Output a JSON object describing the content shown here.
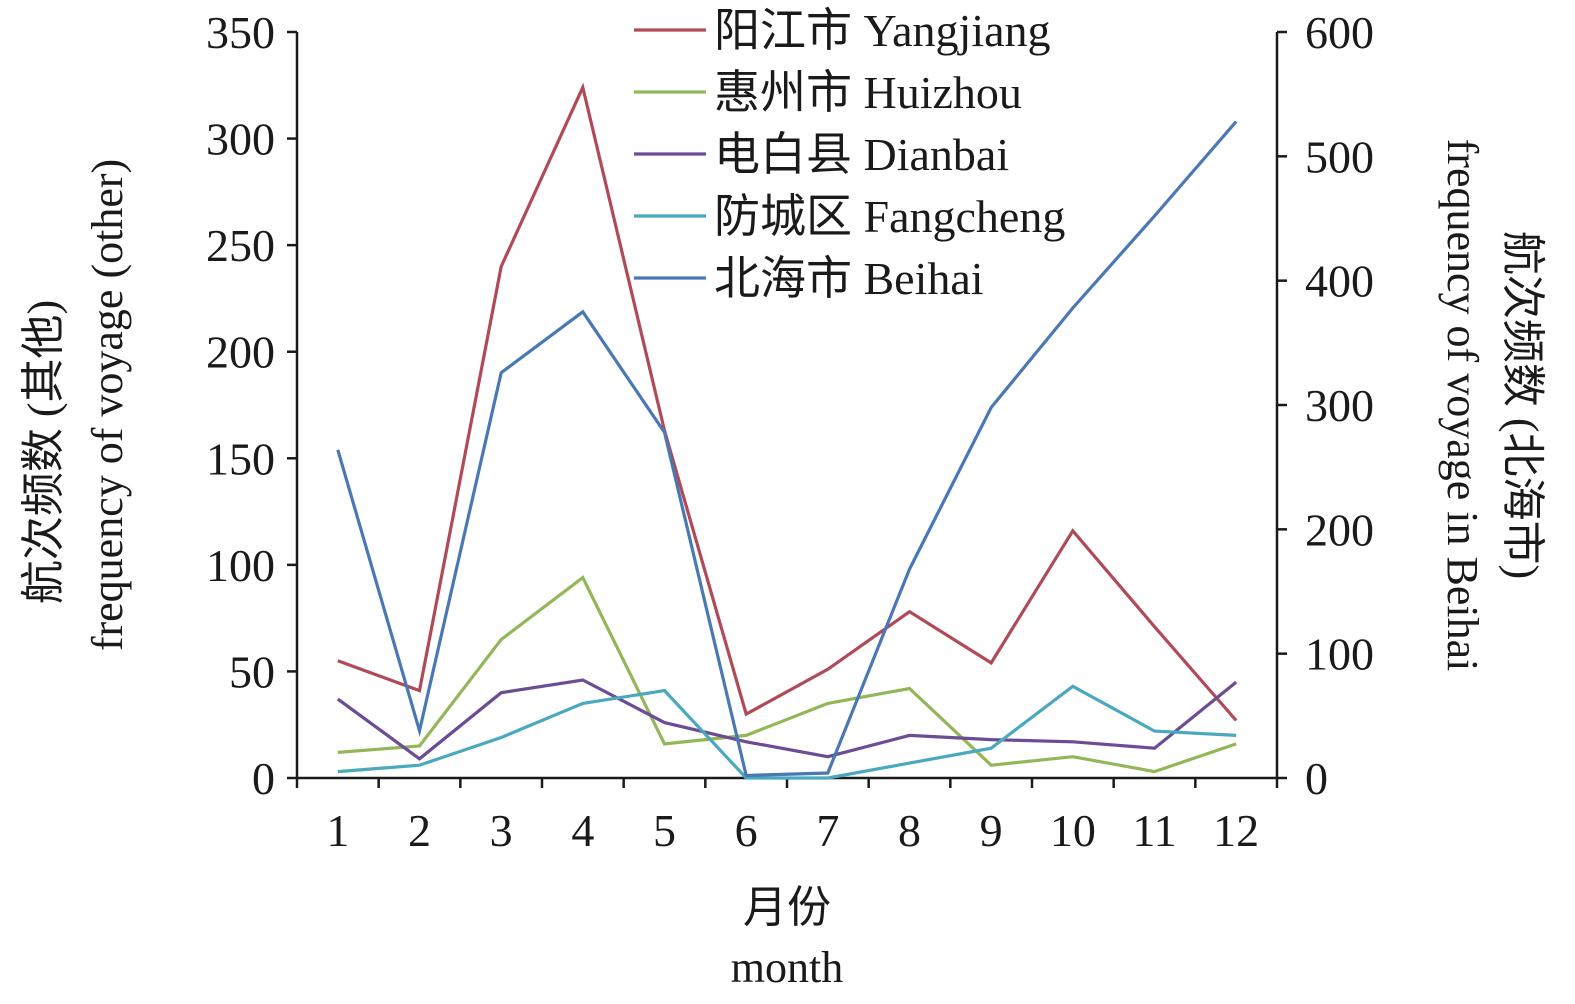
{
  "chart_data": {
    "type": "line",
    "categories": [
      "1",
      "2",
      "3",
      "4",
      "5",
      "6",
      "7",
      "8",
      "9",
      "10",
      "11",
      "12"
    ],
    "x_title_cn": "月份",
    "x_title_en": "month",
    "y_left": {
      "title": "航次频数 (其他) frequency of voyage (other)",
      "title_cn": "航次频数 (其他)",
      "title_en": "frequency of voyage (other)",
      "range": [
        0,
        350
      ],
      "ticks": [
        "0",
        "50",
        "100",
        "150",
        "200",
        "250",
        "300",
        "350"
      ]
    },
    "y_right": {
      "title": "航次频数 (北海市) frequency of voyage in Beihai",
      "title_cn": "航次频数 (北海市)",
      "title_en": "frequency of voyage in Beihai",
      "range": [
        0,
        600
      ],
      "ticks": [
        "0",
        "100",
        "200",
        "300",
        "400",
        "500",
        "600"
      ]
    },
    "legend_position": "top-center",
    "grid": false,
    "series": [
      {
        "name": "阳江市 Yangjiang",
        "axis": "left",
        "color": "#b04a57",
        "values": [
          55,
          41,
          240,
          324,
          163,
          30,
          51,
          78,
          54,
          116,
          71,
          27
        ]
      },
      {
        "name": "惠州市 Huizhou",
        "axis": "left",
        "color": "#93b758",
        "values": [
          12,
          15,
          65,
          94,
          16,
          20,
          35,
          42,
          6,
          10,
          3,
          16
        ]
      },
      {
        "name": "电白县 Dianbai",
        "axis": "left",
        "color": "#6b4c95",
        "values": [
          37,
          9,
          40,
          46,
          26,
          17,
          10,
          20,
          18,
          17,
          14,
          45
        ]
      },
      {
        "name": "防城区 Fangcheng",
        "axis": "left",
        "color": "#4ba9bd",
        "values": [
          3,
          6,
          19,
          35,
          41,
          0,
          0,
          7,
          14,
          43,
          22,
          20
        ]
      },
      {
        "name": "北海市 Beihai",
        "axis": "right",
        "color": "#4a78b4",
        "values": [
          264,
          38,
          326,
          375,
          278,
          2,
          4,
          168,
          298,
          378,
          452,
          528
        ]
      }
    ]
  }
}
